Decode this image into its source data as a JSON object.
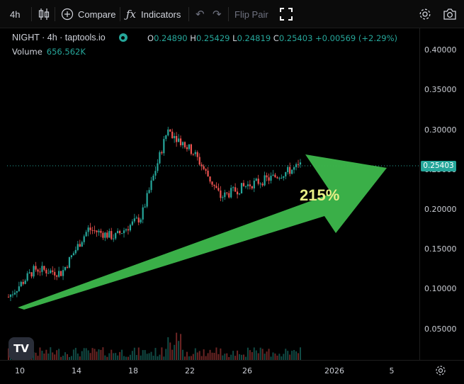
{
  "toolbar": {
    "interval": "4h",
    "compare": "Compare",
    "indicators": "Indicators",
    "flip_pair": "Flip Pair"
  },
  "legend": {
    "symbol": "NIGHT · 4h · taptools.io",
    "open_k": "O",
    "open_v": "0.24890",
    "high_k": "H",
    "high_v": "0.25429",
    "low_k": "L",
    "low_v": "0.24819",
    "close_k": "C",
    "close_v": "0.25403",
    "change": "+0.00569 (+2.29%)",
    "volume_k": "Volume",
    "volume_v": "656.562K"
  },
  "price_axis": {
    "ticks": [
      "0.40000",
      "0.35000",
      "0.30000",
      "0.25000",
      "0.20000",
      "0.15000",
      "0.10000",
      "0.05000"
    ],
    "current_price": "0.25403"
  },
  "time_axis": {
    "ticks": [
      "10",
      "14",
      "18",
      "22",
      "26",
      "2026",
      "5"
    ]
  },
  "annotation": {
    "gain_label": "215%"
  },
  "colors": {
    "up": "#26a69a",
    "down": "#ef5350",
    "arrow": "#3cb54a",
    "accent": "#e8ef86"
  },
  "chart_data": {
    "type": "candlestick",
    "title": "",
    "xlabel": "",
    "ylabel": "",
    "ylim": [
      0.02,
      0.42
    ],
    "x": [
      "10",
      "14",
      "18",
      "22",
      "26"
    ],
    "close_series_approx": [
      0.09,
      0.125,
      0.12,
      0.175,
      0.165,
      0.19,
      0.3,
      0.27,
      0.215,
      0.23,
      0.24,
      0.25403
    ],
    "last_close": 0.25403,
    "volume_last": "656.562K"
  }
}
